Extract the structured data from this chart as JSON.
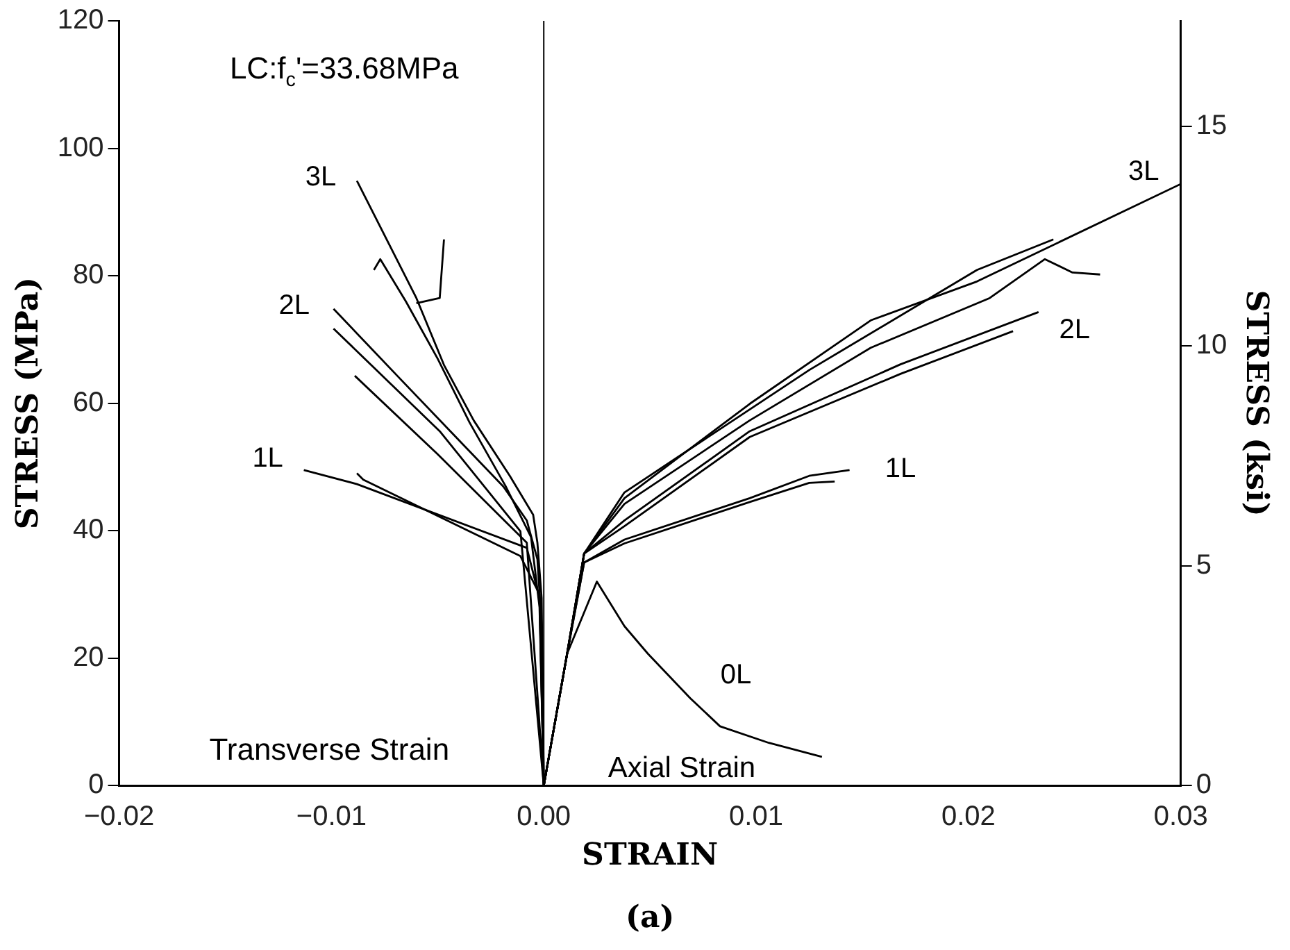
{
  "chart_data": {
    "type": "line",
    "xlabel": "STRAIN",
    "ylabel": "STRESS (MPa)",
    "y2label": "STRESS (ksi)",
    "xlim": [
      -0.02,
      0.03
    ],
    "xticks": [
      {
        "value": -0.02,
        "label": "−0.02"
      },
      {
        "value": -0.01,
        "label": "−0.01"
      },
      {
        "value": 0,
        "label": "0.00"
      },
      {
        "value": 0.01,
        "label": "0.01"
      },
      {
        "value": 0.02,
        "label": "0.02"
      },
      {
        "value": 0.03,
        "label": "0.03"
      }
    ],
    "ylim": [
      0,
      120
    ],
    "yticks": [
      0,
      20,
      40,
      60,
      80,
      100,
      120
    ],
    "y2lim": [
      0,
      17.4
    ],
    "y2ticks": [
      0,
      5,
      10,
      15
    ],
    "grid": false,
    "legend": false,
    "marker": "none",
    "line_style": "solid",
    "ref_lines": [
      {
        "axis": "x",
        "value": 0,
        "color": "#000000"
      }
    ],
    "series": [
      {
        "color": "#000000",
        "x": [
          0,
          -0.0001,
          -0.0003,
          -0.0005,
          -0.0016,
          -0.0033,
          -0.0047,
          -0.006,
          -0.0088
        ],
        "values": [
          0,
          29.4,
          38.1,
          42.5,
          48.6,
          57.3,
          66,
          76.5,
          94.9
        ]
      },
      {
        "color": "#000000",
        "x": [
          0,
          -0.0002,
          -0.0006,
          -0.0018,
          -0.0035,
          -0.005,
          -0.0065,
          -0.0077,
          -0.008
        ],
        "values": [
          0,
          28,
          39,
          47,
          57,
          67,
          76,
          82.6,
          80.9
        ]
      },
      {
        "color": "#000000",
        "x": [
          -0.006,
          -0.0049,
          -0.0047
        ],
        "values": [
          75.7,
          76.5,
          85.7
        ]
      },
      {
        "color": "#000000",
        "x": [
          0,
          -0.0001,
          -0.0003,
          -0.0008,
          -0.0019,
          -0.0044,
          -0.0069,
          -0.0099
        ],
        "values": [
          0,
          25,
          35.5,
          41.6,
          46.9,
          55.6,
          64.3,
          74.8
        ]
      },
      {
        "color": "#000000",
        "x": [
          0,
          -0.0011,
          -0.0049,
          -0.0099
        ],
        "values": [
          0,
          39.9,
          55.6,
          71.7
        ]
      },
      {
        "color": "#000000",
        "x": [
          0,
          -0.0008,
          -0.005,
          -0.0089
        ],
        "values": [
          0,
          38.1,
          52,
          64.3
        ]
      },
      {
        "color": "#000000",
        "x": [
          0,
          -0.0002,
          -0.0008,
          -0.0088,
          -0.0113
        ],
        "values": [
          0,
          29.4,
          37.3,
          47.3,
          49.5
        ]
      },
      {
        "color": "#000000",
        "x": [
          0,
          -0.0002,
          -0.0011,
          -0.0085,
          -0.0088
        ],
        "values": [
          0,
          30,
          36,
          48,
          49
        ]
      },
      {
        "color": "#000000",
        "x": [
          0,
          0.0011,
          0.0019,
          0.0038,
          0.0097,
          0.0154,
          0.0204,
          0.03
        ],
        "values": [
          0,
          20.7,
          36.4,
          45.1,
          59.9,
          73,
          79.1,
          94.4
        ]
      },
      {
        "color": "#000000",
        "x": [
          0,
          0.0011,
          0.0019,
          0.0038,
          0.0097,
          0.0154,
          0.021,
          0.0236,
          0.0249,
          0.0262
        ],
        "values": [
          0,
          20.7,
          36.4,
          44.2,
          57.3,
          68.7,
          76.5,
          82.6,
          80.5,
          80.2
        ]
      },
      {
        "color": "#000000",
        "x": [
          0,
          0.0011,
          0.0019,
          0.0038,
          0.0125,
          0.0204,
          0.024
        ],
        "values": [
          0,
          20.7,
          36.4,
          46,
          65.2,
          80.9,
          85.7
        ]
      },
      {
        "color": "#000000",
        "x": [
          0,
          0.0011,
          0.0019,
          0.0038,
          0.0097,
          0.0168,
          0.0233
        ],
        "values": [
          0,
          20.7,
          36.4,
          41.6,
          55.6,
          66.1,
          74.3
        ]
      },
      {
        "color": "#000000",
        "x": [
          0,
          0.0011,
          0.0019,
          0.0038,
          0.0097,
          0.0168,
          0.0221
        ],
        "values": [
          0,
          20.7,
          36.4,
          40.7,
          54.7,
          64.6,
          71.3
        ]
      },
      {
        "color": "#000000",
        "x": [
          0,
          0.0011,
          0.0019,
          0.0038,
          0.0097,
          0.0125,
          0.0144
        ],
        "values": [
          0,
          20.7,
          35,
          38.6,
          45.1,
          48.6,
          49.5
        ]
      },
      {
        "color": "#000000",
        "x": [
          0,
          0.0011,
          0.0019,
          0.0038,
          0.0097,
          0.0125,
          0.0137
        ],
        "values": [
          0,
          20.7,
          35,
          38,
          44.5,
          47.5,
          47.7
        ]
      },
      {
        "color": "#000000",
        "x": [
          0,
          0.0011,
          0.0025,
          0.0038,
          0.0049,
          0.0069,
          0.0083,
          0.0106,
          0.0131
        ],
        "values": [
          0,
          20.7,
          32,
          25,
          20.7,
          13.7,
          9.3,
          6.7,
          4.5
        ]
      }
    ],
    "annotations": [
      "LC:f$_{c}$'=33.68MPa",
      "Transverse Strain",
      "Axial Strain",
      "(a)",
      "3L",
      "2L",
      "1L",
      "3L",
      "2L",
      "1L",
      "0L"
    ]
  }
}
